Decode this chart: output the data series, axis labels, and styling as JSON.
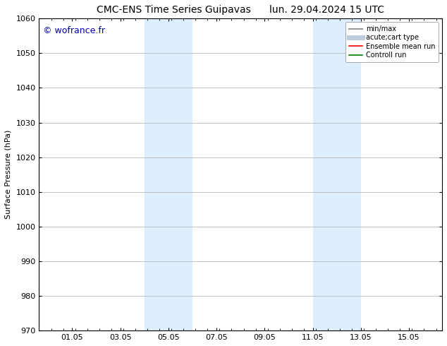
{
  "title": "CMC-ENS Time Series Guipavas      lun. 29.04.2024 15 UTC",
  "ylabel": "Surface Pressure (hPa)",
  "ylim": [
    970,
    1060
  ],
  "yticks": [
    970,
    980,
    990,
    1000,
    1010,
    1020,
    1030,
    1040,
    1050,
    1060
  ],
  "xlim": [
    0,
    16.75
  ],
  "xtick_labels": [
    "01.05",
    "03.05",
    "05.05",
    "07.05",
    "09.05",
    "11.05",
    "13.05",
    "15.05"
  ],
  "xtick_positions": [
    1.375,
    3.375,
    5.375,
    7.375,
    9.375,
    11.375,
    13.375,
    15.375
  ],
  "band1_x0": 4.375,
  "band1_x1": 6.375,
  "band2_x0": 11.375,
  "band2_x1": 13.375,
  "band_color": "#ddeeff",
  "watermark_text": "© wofrance.fr",
  "watermark_color": "#0000bb",
  "legend_items": [
    {
      "label": "min/max",
      "color": "#999999",
      "lw": 1.5,
      "style": "solid"
    },
    {
      "label": "acute;cart type",
      "color": "#bbccdd",
      "lw": 5,
      "style": "solid"
    },
    {
      "label": "Ensemble mean run",
      "color": "red",
      "lw": 1.2,
      "style": "solid"
    },
    {
      "label": "Controll run",
      "color": "green",
      "lw": 1.2,
      "style": "solid"
    }
  ],
  "background_color": "#ffffff",
  "grid_color": "#aaaaaa",
  "title_fontsize": 10,
  "ylabel_fontsize": 8,
  "tick_fontsize": 8,
  "legend_fontsize": 7,
  "watermark_fontsize": 9
}
